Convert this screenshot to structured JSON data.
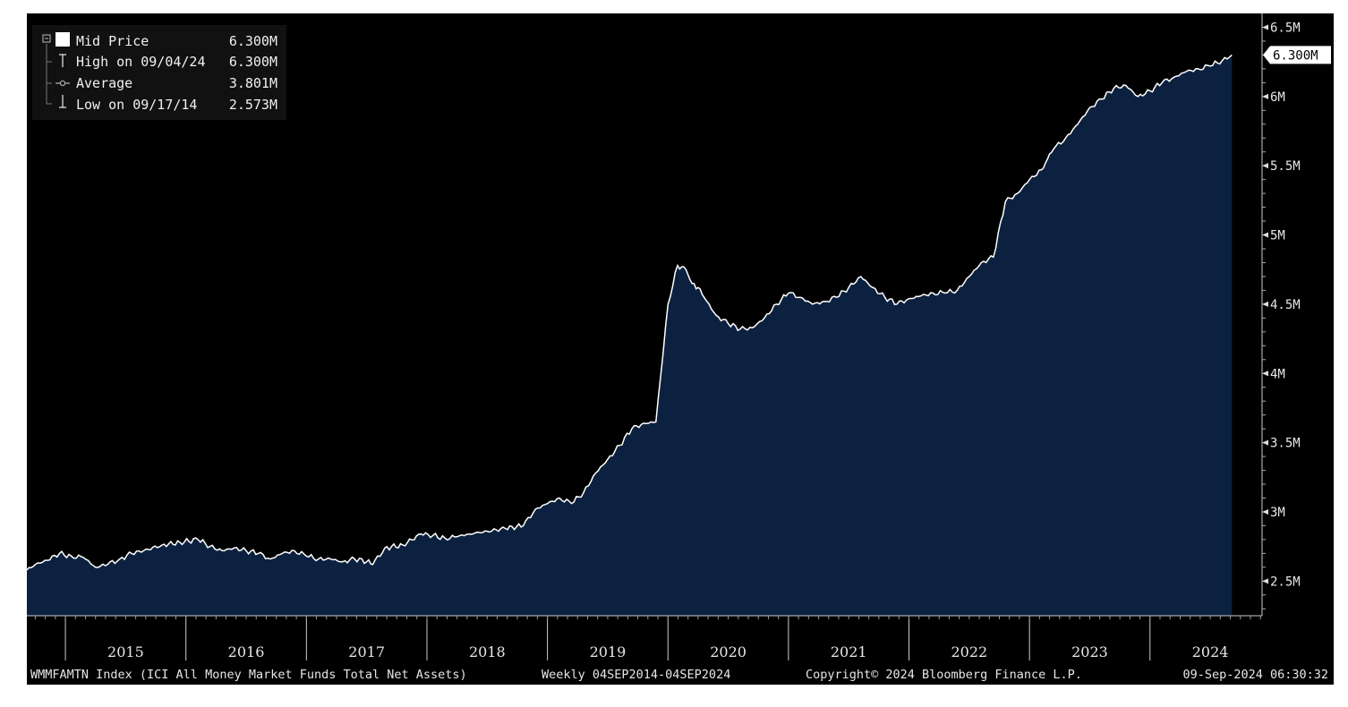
{
  "chart_data": {
    "type": "area",
    "x_unit": "year",
    "x": [
      2014.68,
      2014.75,
      2014.85,
      2014.95,
      2015.05,
      2015.15,
      2015.25,
      2015.35,
      2015.45,
      2015.55,
      2015.65,
      2015.8,
      2015.95,
      2016.1,
      2016.2,
      2016.3,
      2016.4,
      2016.5,
      2016.6,
      2016.7,
      2016.8,
      2016.9,
      2017.0,
      2017.1,
      2017.2,
      2017.3,
      2017.4,
      2017.5,
      2017.55,
      2017.65,
      2017.8,
      2017.95,
      2018.05,
      2018.15,
      2018.25,
      2018.35,
      2018.5,
      2018.65,
      2018.8,
      2018.9,
      2019.0,
      2019.1,
      2019.2,
      2019.3,
      2019.4,
      2019.5,
      2019.6,
      2019.7,
      2019.8,
      2019.9,
      2020.0,
      2020.08,
      2020.15,
      2020.2,
      2020.25,
      2020.3,
      2020.4,
      2020.5,
      2020.6,
      2020.7,
      2020.8,
      2020.9,
      2021.0,
      2021.1,
      2021.2,
      2021.3,
      2021.4,
      2021.5,
      2021.6,
      2021.7,
      2021.8,
      2021.9,
      2022.0,
      2022.1,
      2022.2,
      2022.3,
      2022.4,
      2022.5,
      2022.6,
      2022.7,
      2022.8,
      2022.9,
      2023.0,
      2023.1,
      2023.15,
      2023.2,
      2023.3,
      2023.4,
      2023.5,
      2023.6,
      2023.7,
      2023.8,
      2023.9,
      2024.0,
      2024.1,
      2024.2,
      2024.3,
      2024.4,
      2024.5,
      2024.6,
      2024.68
    ],
    "y": [
      2.58,
      2.62,
      2.65,
      2.7,
      2.68,
      2.67,
      2.6,
      2.62,
      2.66,
      2.7,
      2.72,
      2.76,
      2.78,
      2.8,
      2.75,
      2.72,
      2.74,
      2.72,
      2.7,
      2.66,
      2.7,
      2.72,
      2.68,
      2.66,
      2.66,
      2.64,
      2.66,
      2.64,
      2.62,
      2.74,
      2.76,
      2.84,
      2.83,
      2.81,
      2.82,
      2.84,
      2.86,
      2.88,
      2.9,
      3.02,
      3.06,
      3.1,
      3.06,
      3.14,
      3.28,
      3.38,
      3.48,
      3.6,
      3.64,
      3.65,
      4.5,
      4.78,
      4.75,
      4.65,
      4.62,
      4.55,
      4.42,
      4.36,
      4.32,
      4.33,
      4.4,
      4.5,
      4.58,
      4.55,
      4.5,
      4.52,
      4.55,
      4.62,
      4.7,
      4.62,
      4.55,
      4.5,
      4.54,
      4.56,
      4.58,
      4.58,
      4.6,
      4.7,
      4.8,
      4.84,
      5.24,
      5.3,
      5.4,
      5.47,
      5.55,
      5.62,
      5.7,
      5.8,
      5.92,
      5.98,
      6.06,
      6.08,
      6.0,
      6.04,
      6.1,
      6.14,
      6.18,
      6.2,
      6.22,
      6.26,
      6.3
    ],
    "ylim": [
      2.25,
      6.6
    ],
    "xlim": [
      2014.68,
      2024.93
    ],
    "y_ticks": [
      {
        "value": 2.5,
        "label": "2.5M"
      },
      {
        "value": 3.0,
        "label": "3M"
      },
      {
        "value": 3.5,
        "label": "3.5M"
      },
      {
        "value": 4.0,
        "label": "4M"
      },
      {
        "value": 4.5,
        "label": "4.5M"
      },
      {
        "value": 5.0,
        "label": "5M"
      },
      {
        "value": 5.5,
        "label": "5.5M"
      },
      {
        "value": 6.0,
        "label": "6M"
      },
      {
        "value": 6.5,
        "label": "6.5M"
      }
    ],
    "x_ticks": [
      {
        "value": 2015.5,
        "label": "2015"
      },
      {
        "value": 2016.5,
        "label": "2016"
      },
      {
        "value": 2017.5,
        "label": "2017"
      },
      {
        "value": 2018.5,
        "label": "2018"
      },
      {
        "value": 2019.5,
        "label": "2019"
      },
      {
        "value": 2020.5,
        "label": "2020"
      },
      {
        "value": 2021.5,
        "label": "2021"
      },
      {
        "value": 2022.5,
        "label": "2022"
      },
      {
        "value": 2023.5,
        "label": "2023"
      },
      {
        "value": 2024.5,
        "label": "2024"
      }
    ],
    "year_dividers": [
      2015,
      2016,
      2017,
      2018,
      2019,
      2020,
      2021,
      2022,
      2023,
      2024
    ],
    "last_value_callout": {
      "value": 6.3,
      "label": "6.300M"
    },
    "legend": {
      "placement": "top-left",
      "entries": [
        {
          "label": "Mid Price",
          "value": "6.300M"
        },
        {
          "label": "High on 09/04/24",
          "value": "6.300M"
        },
        {
          "label": "Average",
          "value": "3.801M"
        },
        {
          "label": "Low on 09/17/14",
          "value": "2.573M"
        }
      ]
    },
    "footer": {
      "left": "WMMFAMTN Index (ICI All Money Market Funds Total Net Assets)",
      "middle": "Weekly 04SEP2014-04SEP2024",
      "copyright": "Copyright© 2024 Bloomberg Finance L.P.",
      "timestamp": "09-Sep-2024 06:30:32"
    },
    "colors": {
      "background": "#000000",
      "area_fill": "#0c213f",
      "line": "#ffffff",
      "text": "#e6e6e6",
      "callout_bg": "#ffffff"
    }
  }
}
